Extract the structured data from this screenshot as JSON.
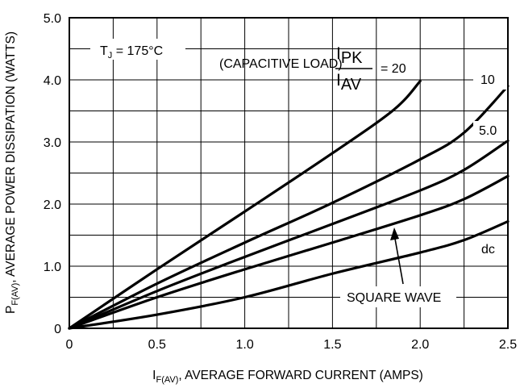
{
  "chart_data": {
    "type": "line",
    "title": "",
    "xlabel": {
      "main": "I",
      "sub": "F(AV)",
      "rest": ", AVERAGE FORWARD CURRENT (AMPS)"
    },
    "ylabel": {
      "main": "P",
      "sub": "F(AV)",
      "rest": ", AVERAGE POWER DISSIPATION (WATTS)"
    },
    "xlim": [
      0,
      2.5
    ],
    "ylim": [
      0,
      5.0
    ],
    "xticks": [
      0,
      0.5,
      1.0,
      1.5,
      2.0,
      2.5
    ],
    "xtick_labels": [
      "0",
      "0.5",
      "1.0",
      "1.5",
      "2.0",
      "2.5"
    ],
    "yticks": [
      0,
      1.0,
      2.0,
      3.0,
      4.0,
      5.0
    ],
    "ytick_labels": [
      "0",
      "1.0",
      "2.0",
      "3.0",
      "4.0",
      "5.0"
    ],
    "grid": true,
    "annotations": {
      "tj": {
        "main": "T",
        "sub": "J",
        "rest": " = 175°C"
      },
      "capacitive_load": "(CAPACITIVE LOAD)",
      "ipk": {
        "main": "I",
        "sub": "PK"
      },
      "iav": {
        "main": "I",
        "sub": "AV"
      },
      "eq_20": "= 20",
      "label_10": "10",
      "label_5": "5.0",
      "label_dc": "dc",
      "square_wave": "SQUARE WAVE"
    },
    "series": [
      {
        "id": "ratio-20",
        "x": [
          0,
          0.5,
          1.0,
          1.5,
          1.85,
          2.0
        ],
        "y": [
          0,
          0.95,
          1.88,
          2.82,
          3.52,
          3.98
        ]
      },
      {
        "id": "ratio-10",
        "x": [
          0,
          0.5,
          1.0,
          1.5,
          2.0,
          2.25,
          2.5
        ],
        "y": [
          0,
          0.72,
          1.38,
          2.02,
          2.72,
          3.15,
          3.9
        ]
      },
      {
        "id": "ratio-5",
        "x": [
          0,
          0.5,
          1.0,
          1.5,
          2.0,
          2.25,
          2.5
        ],
        "y": [
          0,
          0.6,
          1.15,
          1.68,
          2.22,
          2.55,
          3.02
        ]
      },
      {
        "id": "square-wave",
        "x": [
          0,
          0.5,
          1.0,
          1.5,
          2.0,
          2.25,
          2.5
        ],
        "y": [
          0,
          0.5,
          0.95,
          1.38,
          1.82,
          2.08,
          2.45
        ]
      },
      {
        "id": "dc",
        "x": [
          0,
          0.5,
          1.0,
          1.5,
          2.0,
          2.25,
          2.5
        ],
        "y": [
          0,
          0.22,
          0.5,
          0.88,
          1.22,
          1.42,
          1.72
        ]
      }
    ]
  }
}
